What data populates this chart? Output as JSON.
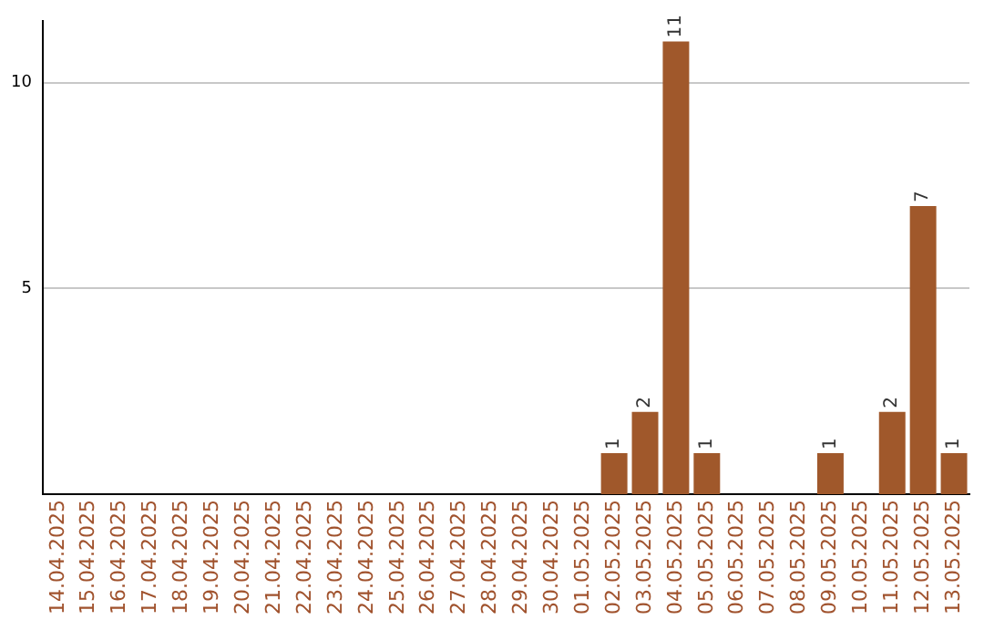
{
  "chart_data": {
    "type": "bar",
    "categories": [
      "14.04.2025",
      "15.04.2025",
      "16.04.2025",
      "17.04.2025",
      "18.04.2025",
      "19.04.2025",
      "20.04.2025",
      "21.04.2025",
      "22.04.2025",
      "23.04.2025",
      "24.04.2025",
      "25.04.2025",
      "26.04.2025",
      "27.04.2025",
      "28.04.2025",
      "29.04.2025",
      "30.04.2025",
      "01.05.2025",
      "02.05.2025",
      "03.05.2025",
      "04.05.2025",
      "05.05.2025",
      "06.05.2025",
      "07.05.2025",
      "08.05.2025",
      "09.05.2025",
      "10.05.2025",
      "11.05.2025",
      "12.05.2025",
      "13.05.2025"
    ],
    "values": [
      0,
      0,
      0,
      0,
      0,
      0,
      0,
      0,
      0,
      0,
      0,
      0,
      0,
      0,
      0,
      0,
      0,
      0,
      1,
      2,
      11,
      1,
      0,
      0,
      0,
      1,
      0,
      2,
      7,
      1
    ],
    "value_labels": [
      null,
      null,
      null,
      null,
      null,
      null,
      null,
      null,
      null,
      null,
      null,
      null,
      null,
      null,
      null,
      null,
      null,
      null,
      "1",
      "2",
      "11",
      "1",
      null,
      null,
      null,
      "1",
      null,
      "2",
      "7",
      "1"
    ],
    "color": "#a0582b",
    "ylim": [
      0,
      11.5
    ],
    "yticks": [
      5,
      10
    ],
    "grid": "y",
    "legend": false
  }
}
